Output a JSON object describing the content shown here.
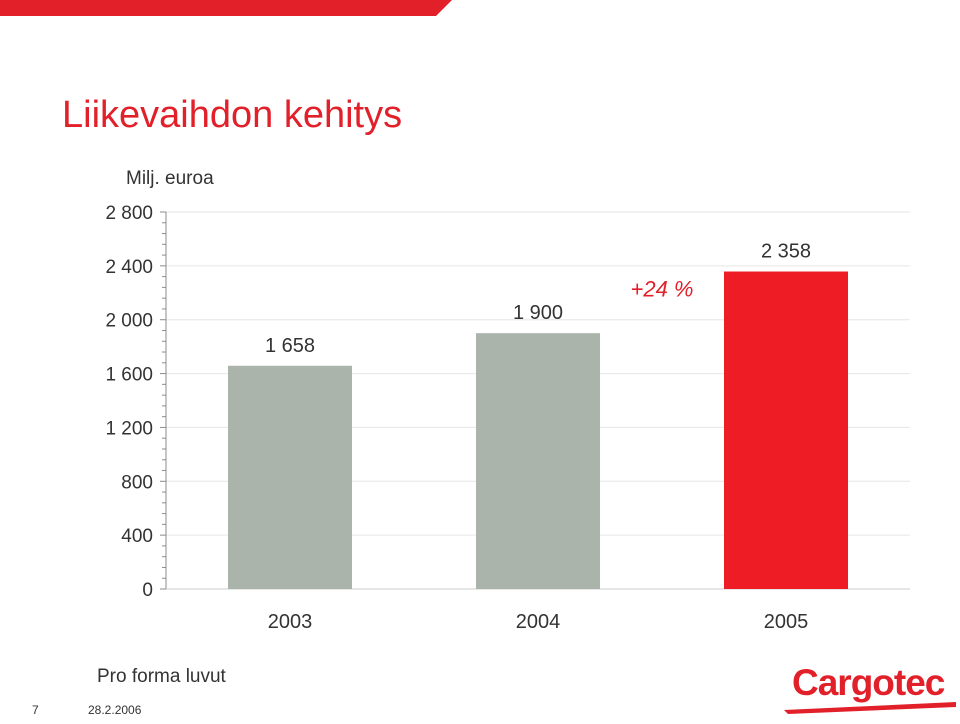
{
  "slide": {
    "title": "Liikevaihdon kehitys",
    "unit_label": "Milj. euroa",
    "footnote": "Pro forma luvut",
    "page_number": "7",
    "date": "28.2.2006",
    "logo_text": "Cargotec"
  },
  "colors": {
    "brand_red": "#e2202a",
    "bar_grey": "#abb4ab",
    "bar_highlight": "#ee1c25"
  },
  "chart_data": {
    "type": "bar",
    "title": "Liikevaihdon kehitys",
    "ylabel": "Milj. euroa",
    "categories": [
      "2003",
      "2004",
      "2005"
    ],
    "values": [
      1658,
      1900,
      2358
    ],
    "value_labels": [
      "1 658",
      "1 900",
      "2 358"
    ],
    "bar_colors": [
      "#abb4ab",
      "#abb4ab",
      "#ee1c25"
    ],
    "ylim": [
      0,
      2800
    ],
    "y_ticks": [
      0,
      400,
      800,
      1200,
      1600,
      2000,
      2400,
      2800
    ],
    "y_tick_labels": [
      "0",
      "400",
      "800",
      "1 200",
      "1 600",
      "2 000",
      "2 400",
      "2 800"
    ],
    "grid": true,
    "annotation": "+24 %"
  }
}
